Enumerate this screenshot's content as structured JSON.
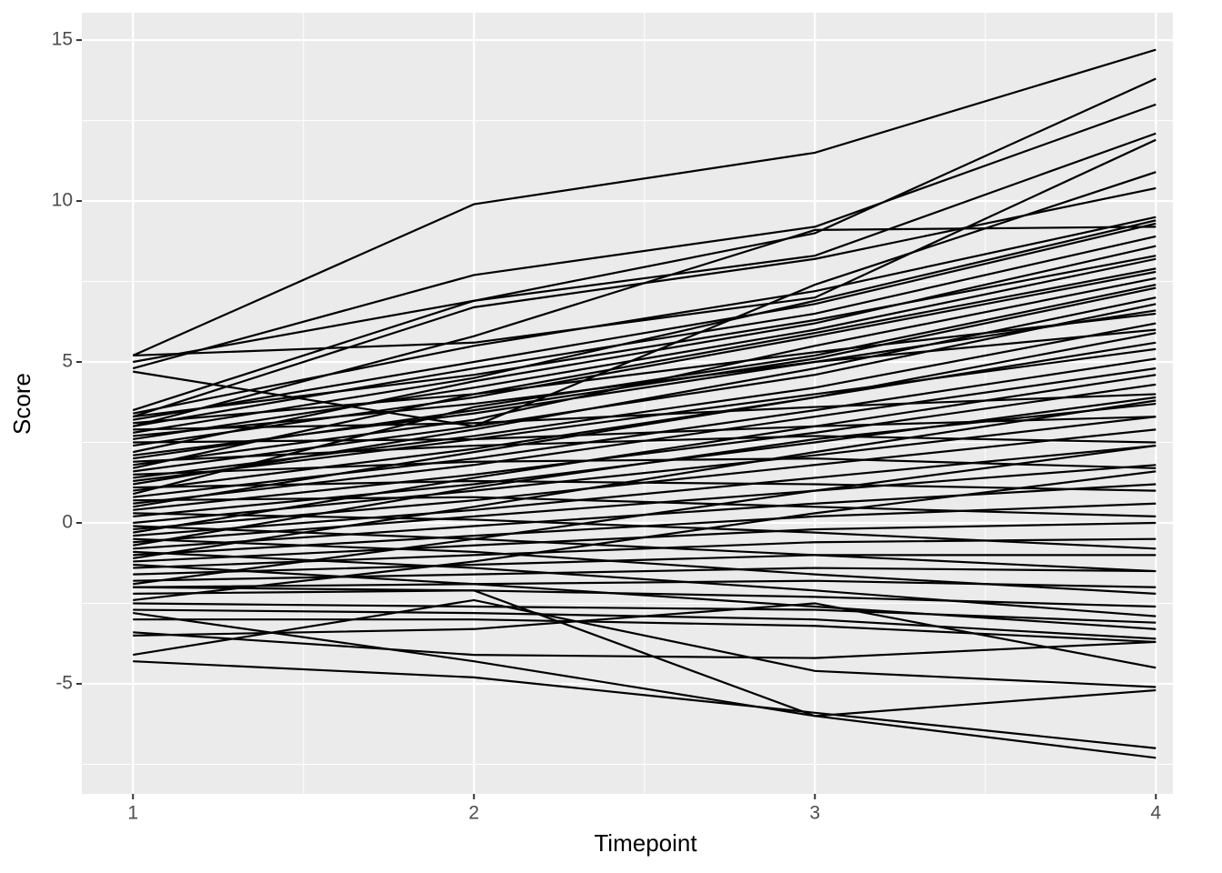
{
  "chart_data": {
    "type": "line",
    "x_label": "Timepoint",
    "y_label": "Score",
    "x": [
      1,
      2,
      3,
      4
    ],
    "color": "#000000",
    "xlim": [
      0.85,
      4.05
    ],
    "ylim": [
      -8.42,
      15.85
    ],
    "xticks": [
      1,
      2,
      3,
      4
    ],
    "yticks": [
      -5,
      0,
      5,
      10,
      15
    ],
    "xminorticks": [
      1.5,
      2.5,
      3.5
    ],
    "yminorticks": [
      -7.5,
      -2.5,
      2.5,
      7.5,
      12.5
    ],
    "grid": true,
    "series": [
      {
        "values": [
          5.2,
          9.9,
          11.5,
          14.7
        ]
      },
      {
        "values": [
          3.5,
          6.9,
          9.0,
          13.8
        ]
      },
      {
        "values": [
          4.8,
          7.7,
          9.2,
          13.0
        ]
      },
      {
        "values": [
          5.0,
          6.9,
          8.3,
          12.1
        ]
      },
      {
        "values": [
          5.2,
          5.6,
          7.0,
          11.9
        ]
      },
      {
        "values": [
          4.7,
          3.0,
          7.4,
          10.9
        ]
      },
      {
        "values": [
          3.3,
          6.7,
          8.2,
          10.4
        ]
      },
      {
        "values": [
          3.0,
          5.8,
          9.1,
          9.2
        ]
      },
      {
        "values": [
          -4.3,
          -4.8,
          -5.9,
          -7.0
        ]
      },
      {
        "values": [
          -2.8,
          -4.3,
          -6.0,
          -7.3
        ]
      },
      {
        "values": [
          -4.1,
          -2.4,
          -4.6,
          -5.1
        ]
      },
      {
        "values": [
          -3.4,
          -4.1,
          -4.2,
          -3.7
        ]
      },
      {
        "values": [
          -2.0,
          -2.1,
          -6.0,
          -5.2
        ]
      },
      {
        "values": [
          -3.5,
          -3.3,
          -2.5,
          -4.5
        ]
      },
      {
        "values": [
          3.4,
          5.5,
          7.2,
          9.5
        ]
      },
      {
        "values": [
          3.2,
          5.0,
          6.8,
          9.3
        ]
      },
      {
        "values": [
          3.0,
          4.8,
          6.5,
          8.9
        ]
      },
      {
        "values": [
          2.8,
          4.5,
          6.9,
          9.4
        ]
      },
      {
        "values": [
          2.6,
          4.2,
          6.0,
          8.2
        ]
      },
      {
        "values": [
          2.4,
          3.9,
          5.8,
          7.8
        ]
      },
      {
        "values": [
          2.2,
          4.4,
          6.2,
          8.6
        ]
      },
      {
        "values": [
          2.0,
          3.5,
          5.1,
          7.3
        ]
      },
      {
        "values": [
          1.8,
          3.2,
          5.5,
          7.6
        ]
      },
      {
        "values": [
          1.6,
          3.0,
          4.6,
          6.8
        ]
      },
      {
        "values": [
          1.4,
          2.7,
          4.2,
          6.2
        ]
      },
      {
        "values": [
          1.2,
          2.9,
          4.8,
          7.0
        ]
      },
      {
        "values": [
          1.0,
          2.3,
          3.9,
          5.6
        ]
      },
      {
        "values": [
          0.8,
          2.0,
          3.5,
          5.1
        ]
      },
      {
        "values": [
          0.6,
          1.8,
          3.3,
          4.8
        ]
      },
      {
        "values": [
          0.4,
          1.5,
          2.8,
          4.3
        ]
      },
      {
        "values": [
          0.2,
          1.2,
          2.5,
          3.9
        ]
      },
      {
        "values": [
          0.0,
          1.0,
          2.1,
          3.3
        ]
      },
      {
        "values": [
          -0.2,
          0.7,
          1.8,
          2.9
        ]
      },
      {
        "values": [
          -0.4,
          0.4,
          1.4,
          2.4
        ]
      },
      {
        "values": [
          -0.6,
          0.2,
          1.0,
          1.8
        ]
      },
      {
        "values": [
          -0.8,
          -0.1,
          0.6,
          1.2
        ]
      },
      {
        "values": [
          -1.0,
          -0.4,
          0.2,
          0.6
        ]
      },
      {
        "values": [
          -1.2,
          -0.7,
          -0.2,
          0.0
        ]
      },
      {
        "values": [
          -1.4,
          -1.0,
          -0.6,
          -0.5
        ]
      },
      {
        "values": [
          -1.6,
          -1.3,
          -1.0,
          -1.0
        ]
      },
      {
        "values": [
          -1.8,
          -1.6,
          -1.4,
          -1.5
        ]
      },
      {
        "values": [
          -2.0,
          -1.9,
          -1.8,
          -2.0
        ]
      },
      {
        "values": [
          -2.2,
          -2.1,
          -2.3,
          -2.6
        ]
      },
      {
        "values": [
          -2.5,
          -2.6,
          -2.7,
          -3.1
        ]
      },
      {
        "values": [
          -2.7,
          -2.8,
          -3.0,
          -3.6
        ]
      },
      {
        "values": [
          -3.0,
          -3.0,
          -3.2,
          -3.7
        ]
      },
      {
        "values": [
          2.9,
          3.1,
          3.6,
          4.0
        ]
      },
      {
        "values": [
          2.5,
          2.6,
          3.0,
          3.3
        ]
      },
      {
        "values": [
          1.9,
          2.4,
          2.7,
          2.5
        ]
      },
      {
        "values": [
          1.5,
          1.9,
          2.0,
          1.7
        ]
      },
      {
        "values": [
          1.1,
          1.3,
          1.2,
          1.0
        ]
      },
      {
        "values": [
          0.7,
          0.8,
          0.5,
          0.2
        ]
      },
      {
        "values": [
          0.3,
          0.1,
          -0.3,
          -0.8
        ]
      },
      {
        "values": [
          -0.1,
          -0.5,
          -1.0,
          -1.5
        ]
      },
      {
        "values": [
          -0.5,
          -0.9,
          -1.6,
          -2.2
        ]
      },
      {
        "values": [
          -0.9,
          -1.4,
          -2.1,
          -2.9
        ]
      },
      {
        "values": [
          -1.3,
          -1.9,
          -2.6,
          -3.3
        ]
      },
      {
        "values": [
          3.1,
          4.0,
          5.3,
          6.5
        ]
      },
      {
        "values": [
          2.7,
          3.7,
          5.0,
          6.0
        ]
      },
      {
        "values": [
          2.1,
          3.4,
          5.0,
          6.6
        ]
      },
      {
        "values": [
          1.3,
          2.6,
          4.0,
          5.4
        ]
      },
      {
        "values": [
          0.5,
          2.2,
          3.9,
          5.9
        ]
      },
      {
        "values": [
          -0.3,
          1.4,
          3.0,
          4.6
        ]
      },
      {
        "values": [
          -1.1,
          0.5,
          2.2,
          3.8
        ]
      },
      {
        "values": [
          -1.9,
          -0.5,
          1.0,
          2.4
        ]
      },
      {
        "values": [
          -2.4,
          -1.2,
          0.3,
          1.6
        ]
      },
      {
        "values": [
          -0.7,
          1.1,
          2.6,
          3.7
        ]
      },
      {
        "values": [
          1.7,
          4.0,
          5.9,
          7.9
        ]
      },
      {
        "values": [
          0.9,
          3.6,
          5.2,
          7.4
        ]
      },
      {
        "values": [
          3.3,
          4.6,
          6.3,
          8.3
        ]
      }
    ]
  }
}
